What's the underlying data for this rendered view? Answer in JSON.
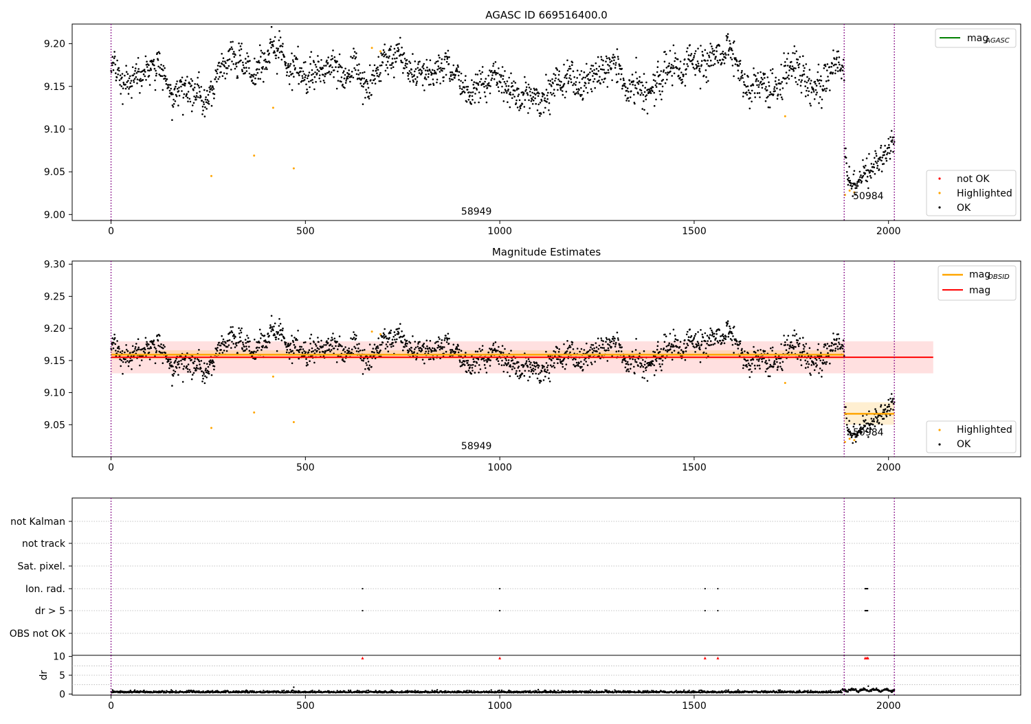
{
  "chart_data": [
    {
      "type": "scatter",
      "title": "AGASC ID 669516400.0",
      "xlim": [
        -100,
        2340
      ],
      "ylim": [
        8.993,
        9.223
      ],
      "x_ticks": [
        0,
        500,
        1000,
        1500,
        2000
      ],
      "y_ticks": [
        9.0,
        9.05,
        9.1,
        9.15,
        9.2
      ],
      "y_tick_labels": [
        "9.00",
        "9.05",
        "9.10",
        "9.15",
        "9.20"
      ],
      "grid": false,
      "vlines": [
        0,
        1886,
        2015
      ],
      "annotations": [
        {
          "text": "58949",
          "x": 940,
          "y": 9.0
        },
        {
          "text": "50984",
          "x": 1948,
          "y": 9.018
        }
      ],
      "legend_top": {
        "position": "top-right",
        "entries": [
          {
            "label": "mag",
            "sub": "AGASC",
            "color": "#008000"
          }
        ]
      },
      "legend_bottom": {
        "position": "bottom-right",
        "entries": [
          {
            "label": "not OK",
            "color": "#ff0000"
          },
          {
            "label": "Highlighted",
            "color": "#ffa500"
          },
          {
            "label": "OK",
            "color": "#000000"
          }
        ]
      },
      "segments": [
        {
          "x0": 0,
          "x1": 1886,
          "mean": 9.158,
          "amp": 0.013,
          "noise": 0.009
        },
        {
          "x0": 1887,
          "x1": 2015,
          "mean": 9.065,
          "amp": 0.018,
          "noise": 0.008,
          "start": 9.08,
          "dip": 9.035
        }
      ],
      "highlighted": [
        [
          258,
          9.045
        ],
        [
          368,
          9.069
        ],
        [
          417,
          9.125
        ],
        [
          470,
          9.054
        ],
        [
          671,
          9.195
        ],
        [
          693,
          9.191
        ],
        [
          1734,
          9.115
        ],
        [
          1888,
          9.023
        ],
        [
          1900,
          9.028
        ],
        [
          1912,
          9.026
        ]
      ]
    },
    {
      "type": "scatter",
      "title": "Magnitude Estimates",
      "xlim": [
        -100,
        2340
      ],
      "ylim": [
        9.0,
        9.305
      ],
      "x_ticks": [
        0,
        500,
        1000,
        1500,
        2000
      ],
      "y_ticks": [
        9.05,
        9.1,
        9.15,
        9.2,
        9.25,
        9.3
      ],
      "y_tick_labels": [
        "9.05",
        "9.10",
        "9.15",
        "9.20",
        "9.25",
        "9.30"
      ],
      "grid": false,
      "vlines": [
        0,
        1886,
        2015
      ],
      "mag": {
        "value": 9.155,
        "x0": 0,
        "x1": 2115,
        "band": [
          9.13,
          9.18
        ],
        "color": "#ff0000"
      },
      "mag_obsid": [
        {
          "x0": 0,
          "x1": 1886,
          "value": 9.159,
          "band": [
            9.152,
            9.166
          ]
        },
        {
          "x0": 1886,
          "x1": 2015,
          "value": 9.067,
          "band": [
            9.05,
            9.085
          ]
        }
      ],
      "annotations": [
        {
          "text": "58949",
          "x": 940,
          "y": 9.012
        },
        {
          "text": "50984",
          "x": 1948,
          "y": 9.033
        }
      ],
      "legend_top": {
        "position": "top-right",
        "entries": [
          {
            "label": "mag",
            "sub": "OBSID",
            "color": "#ffa500"
          },
          {
            "label": "mag",
            "sub": "",
            "color": "#ff0000"
          }
        ]
      },
      "legend_bottom": {
        "position": "bottom-right",
        "entries": [
          {
            "label": "Highlighted",
            "color": "#ffa500"
          },
          {
            "label": "OK",
            "color": "#000000"
          }
        ]
      }
    },
    {
      "type": "scatter",
      "title": "",
      "xlim": [
        -100,
        2340
      ],
      "categories": [
        "not Kalman",
        "not track",
        "Sat. pixel.",
        "Ion. rad.",
        "dr > 5",
        "OBS not OK"
      ],
      "vlines": [
        0,
        1886,
        2015
      ],
      "flag_points": {
        "Ion. rad.": [
          647,
          1000,
          1528,
          1561,
          1940,
          1942,
          1944,
          1946
        ],
        "dr > 5": [
          647,
          1000,
          1528,
          1561,
          1940,
          1942,
          1944,
          1946
        ]
      }
    },
    {
      "type": "scatter",
      "title": "",
      "xlim": [
        -100,
        2340
      ],
      "ylim": [
        -0.3,
        10.3
      ],
      "ylabel": "dr",
      "y_ticks": [
        0,
        5,
        10
      ],
      "y_tick_labels": [
        "0",
        "5",
        "10"
      ],
      "x_ticks": [
        0,
        500,
        1000,
        1500,
        2000
      ],
      "vlines": [
        0,
        1886,
        2015
      ],
      "red_markers": [
        647,
        1000,
        1528,
        1561,
        1940,
        1944,
        1947
      ]
    }
  ]
}
